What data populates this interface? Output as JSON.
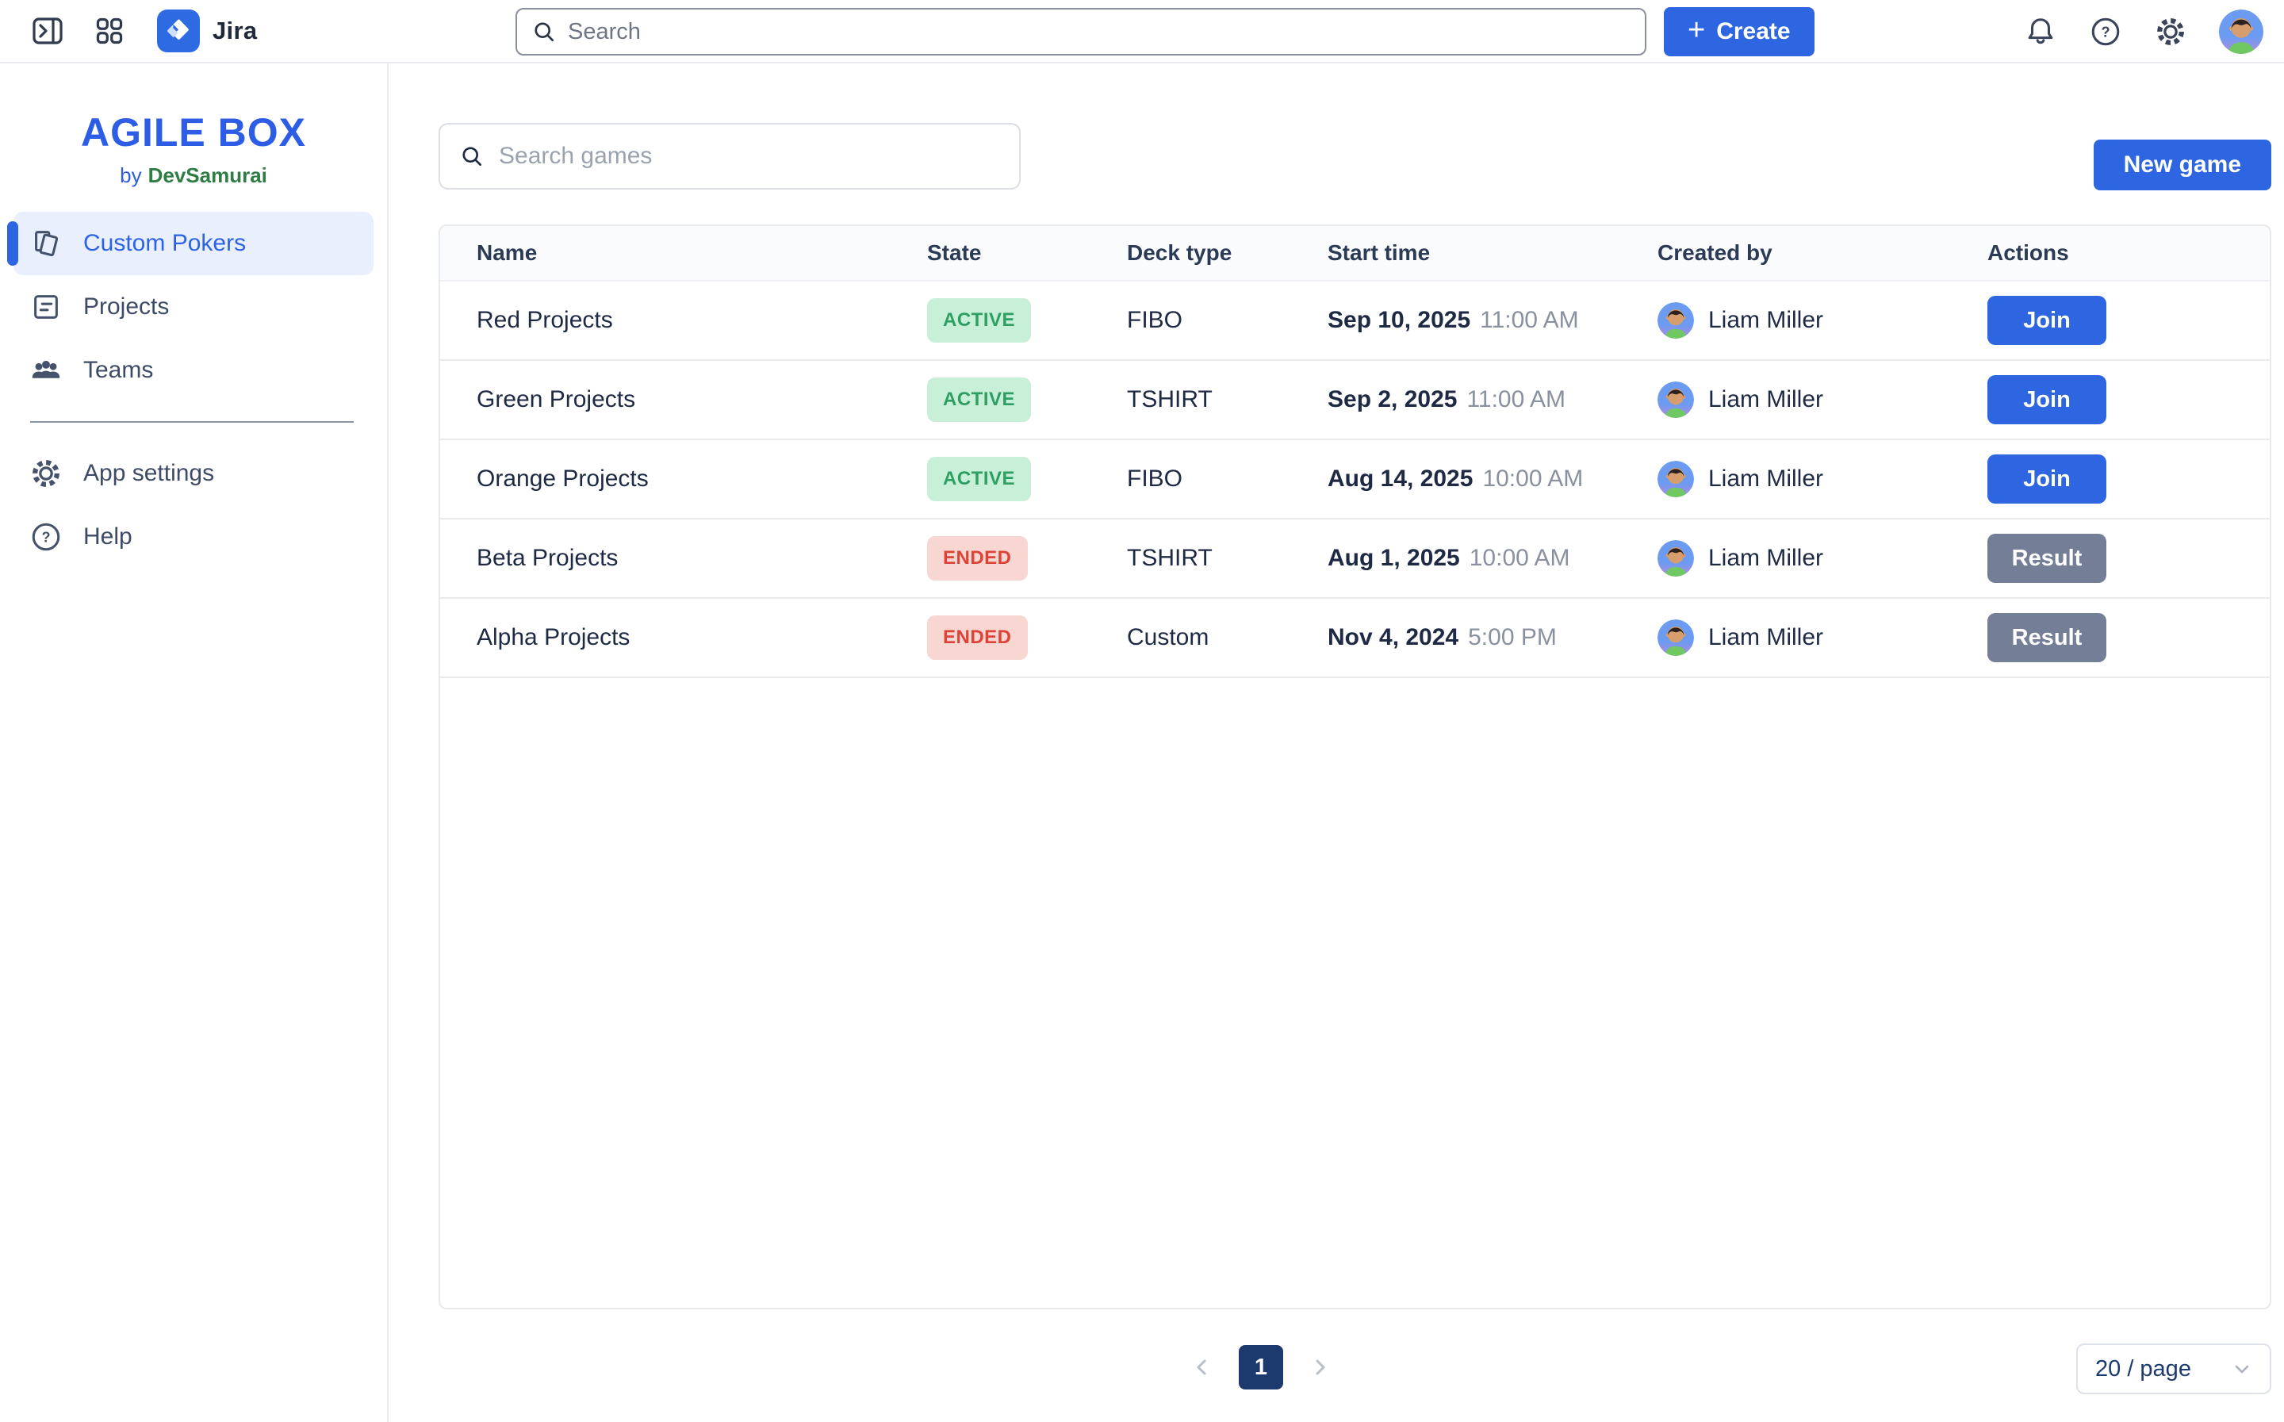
{
  "topbar": {
    "app_name": "Jira",
    "search_placeholder": "Search",
    "create_label": "Create",
    "create_plus_icon": "+"
  },
  "sidebar": {
    "logo_title": "AGILE BOX",
    "logo_by": "by",
    "logo_brand": "DevSamurai",
    "items": [
      {
        "label": "Custom Pokers",
        "icon": "poker-cards-icon",
        "active": true
      },
      {
        "label": "Projects",
        "icon": "projects-icon",
        "active": false
      },
      {
        "label": "Teams",
        "icon": "teams-icon",
        "active": false
      }
    ],
    "footer_items": [
      {
        "label": "App settings",
        "icon": "gear-icon"
      },
      {
        "label": "Help",
        "icon": "help-icon"
      }
    ]
  },
  "content": {
    "games_search_placeholder": "Search games",
    "new_game_label": "New game",
    "table": {
      "columns": [
        "Name",
        "State",
        "Deck type",
        "Start time",
        "Created by",
        "Actions"
      ],
      "rows": [
        {
          "name": "Red Projects",
          "state": "ACTIVE",
          "deck_type": "FIBO",
          "start_date": "Sep 10, 2025",
          "start_clock": "11:00 AM",
          "created_by": "Liam Miller",
          "action": "Join"
        },
        {
          "name": "Green Projects",
          "state": "ACTIVE",
          "deck_type": "TSHIRT",
          "start_date": "Sep 2, 2025",
          "start_clock": "11:00 AM",
          "created_by": "Liam Miller",
          "action": "Join"
        },
        {
          "name": "Orange Projects",
          "state": "ACTIVE",
          "deck_type": "FIBO",
          "start_date": "Aug 14, 2025",
          "start_clock": "10:00 AM",
          "created_by": "Liam Miller",
          "action": "Join"
        },
        {
          "name": "Beta Projects",
          "state": "ENDED",
          "deck_type": "TSHIRT",
          "start_date": "Aug 1, 2025",
          "start_clock": "10:00 AM",
          "created_by": "Liam Miller",
          "action": "Result"
        },
        {
          "name": "Alpha Projects",
          "state": "ENDED",
          "deck_type": "Custom",
          "start_date": "Nov 4, 2024",
          "start_clock": "5:00 PM",
          "created_by": "Liam Miller",
          "action": "Result"
        }
      ]
    },
    "pagination": {
      "current_page": "1",
      "page_size_label": "20 / page"
    }
  },
  "colors": {
    "accent_blue": "#2d66e0",
    "brand_blue": "#2d5ce5",
    "brand_green": "#2f7d45",
    "active_badge_bg": "#c8f0d9",
    "active_badge_text": "#2f9e63",
    "ended_badge_bg": "#f8d6d2",
    "ended_badge_text": "#dd4437",
    "result_button_bg": "#747f97",
    "pagination_active_bg": "#1d3a6e"
  }
}
